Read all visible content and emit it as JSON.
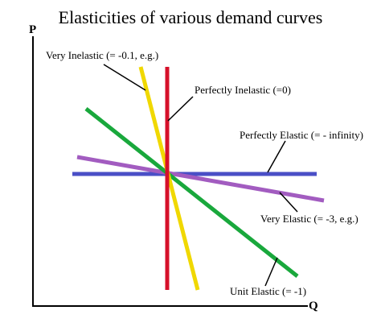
{
  "title": "Elasticities of various demand curves",
  "axes": {
    "y_label": "P",
    "x_label": "Q"
  },
  "curves": [
    {
      "key": "very-inelastic",
      "label": "Very Inelastic (= -0.1, e.g.)",
      "color": "#f0d800"
    },
    {
      "key": "perfectly-inelastic",
      "label": "Perfectly Inelastic (=0)",
      "color": "#d6102a"
    },
    {
      "key": "perfectly-elastic",
      "label": "Perfectly Elastic (= - infinity)",
      "color": "#4a4fc6"
    },
    {
      "key": "very-elastic",
      "label": "Very Elastic (= -3, e.g.)",
      "color": "#a25cc0"
    },
    {
      "key": "unit-elastic",
      "label": "Unit Elastic (= -1)",
      "color": "#19a83c"
    }
  ],
  "colors": {
    "axis": "#000000",
    "leader": "#000000"
  }
}
